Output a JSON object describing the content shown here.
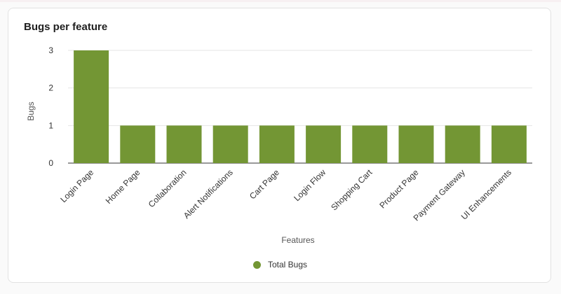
{
  "card": {
    "title": "Bugs per feature"
  },
  "colors": {
    "bar": "#739634",
    "grid": "#e6e6e6",
    "axis": "#333333"
  },
  "chart_data": {
    "type": "bar",
    "title": "Bugs per feature",
    "xlabel": "Features",
    "ylabel": "Bugs",
    "ylim": [
      0,
      3
    ],
    "yticks": [
      0,
      1,
      2,
      3
    ],
    "grid": true,
    "legend_position": "bottom",
    "categories": [
      "Login Page",
      "Home Page",
      "Collaboration",
      "Alert Notifications",
      "Cart Page",
      "Login Flow",
      "Shopping Cart",
      "Product Page",
      "Payment Gateway",
      "UI Enhancements"
    ],
    "series": [
      {
        "name": "Total Bugs",
        "values": [
          3,
          1,
          1,
          1,
          1,
          1,
          1,
          1,
          1,
          1
        ]
      }
    ]
  }
}
